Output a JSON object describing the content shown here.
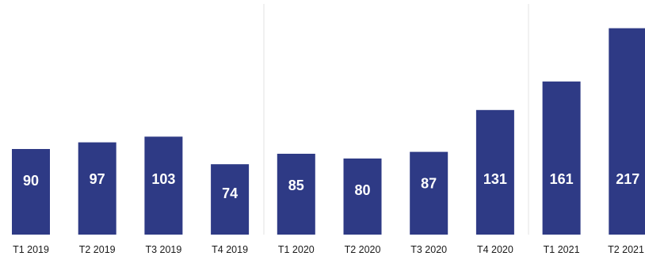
{
  "chart_data": {
    "type": "bar",
    "categories": [
      "T1 2019",
      "T2 2019",
      "T3 2019",
      "T4 2019",
      "T1 2020",
      "T2 2020",
      "T3 2020",
      "T4 2020",
      "T1 2021",
      "T2 2021"
    ],
    "values": [
      90,
      97,
      103,
      74,
      85,
      80,
      87,
      131,
      161,
      217
    ],
    "data_labels": [
      "90",
      "97",
      "103",
      "74",
      "85",
      "80",
      "87",
      "131",
      "161",
      "217"
    ],
    "title": "",
    "xlabel": "",
    "ylabel": "",
    "ylim": [
      0,
      240
    ],
    "grid": false,
    "legend": "none",
    "bar_color": "#2e3a85",
    "label_color": "#ffffff"
  }
}
